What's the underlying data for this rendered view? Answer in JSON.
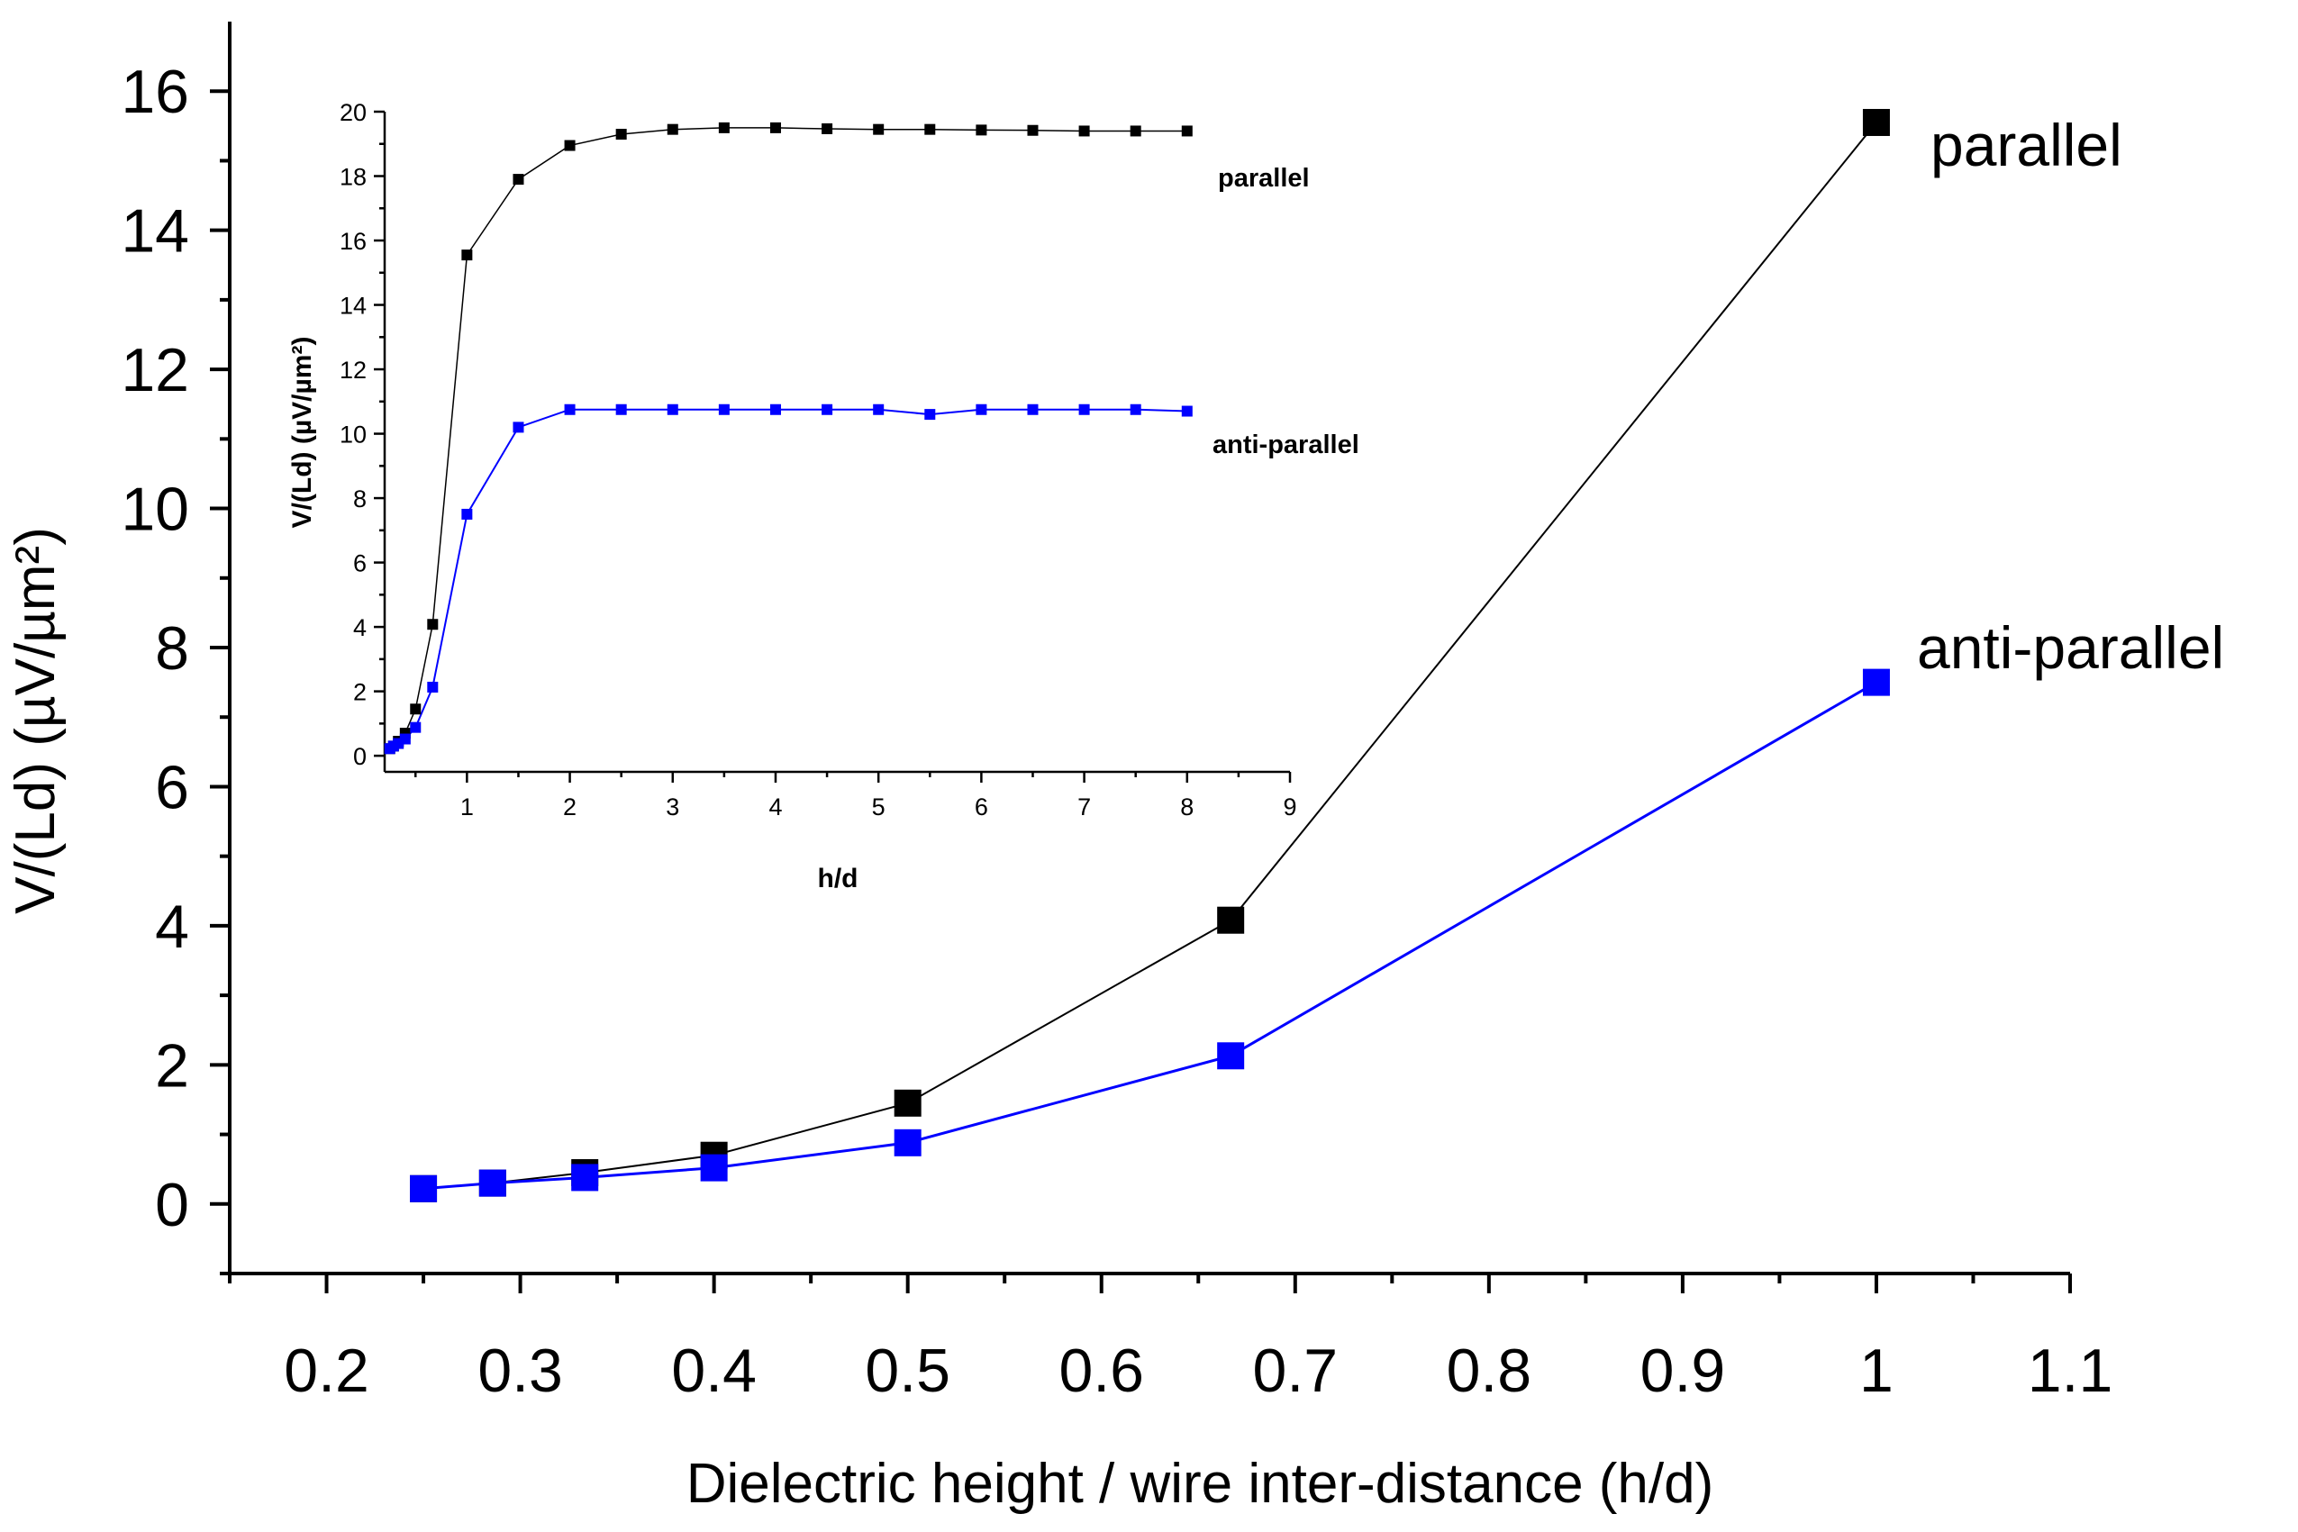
{
  "chart_data": [
    {
      "type": "line",
      "title": "",
      "xlabel": "Dielectric height / wire inter-distance (h/d)",
      "ylabel": "V/(Ld) (µV/µm²)",
      "xlim": [
        0.15,
        1.1
      ],
      "ylim": [
        -1,
        17
      ],
      "xticks": [
        "0.2",
        "0.3",
        "0.4",
        "0.5",
        "0.6",
        "0.7",
        "0.8",
        "0.9",
        "1",
        "1.1"
      ],
      "yticks": [
        "0",
        "2",
        "4",
        "6",
        "8",
        "10",
        "12",
        "14",
        "16"
      ],
      "series": [
        {
          "name": "parallel",
          "color": "#000000",
          "x": [
            0.25,
            0.2857,
            0.3333,
            0.4,
            0.5,
            0.6667,
            1.0
          ],
          "y": [
            0.22,
            0.3,
            0.45,
            0.7,
            1.45,
            4.08,
            15.55
          ]
        },
        {
          "name": "anti-parallel",
          "color": "#0000ff",
          "x": [
            0.25,
            0.2857,
            0.3333,
            0.4,
            0.5,
            0.6667,
            1.0
          ],
          "y": [
            0.22,
            0.3,
            0.38,
            0.52,
            0.88,
            2.13,
            7.5
          ]
        }
      ]
    },
    {
      "type": "line",
      "title": "",
      "xlabel": "h/d",
      "ylabel": "V/(Ld) (µV/µm²)",
      "xlim": [
        0.2,
        9
      ],
      "ylim": [
        -0.5,
        20
      ],
      "xticks": [
        "1",
        "2",
        "3",
        "4",
        "5",
        "6",
        "7",
        "8",
        "9"
      ],
      "yticks": [
        "0",
        "2",
        "4",
        "6",
        "8",
        "10",
        "12",
        "14",
        "16",
        "18",
        "20"
      ],
      "series": [
        {
          "name": "parallel",
          "color": "#000000",
          "x": [
            0.25,
            0.2857,
            0.3333,
            0.4,
            0.5,
            0.6667,
            1.0,
            1.5,
            2.0,
            2.5,
            3.0,
            3.5,
            4.0,
            4.5,
            5.0,
            5.5,
            6.0,
            6.5,
            7.0,
            7.5,
            8.0
          ],
          "y": [
            0.22,
            0.3,
            0.45,
            0.7,
            1.45,
            4.08,
            15.55,
            17.9,
            18.95,
            19.3,
            19.45,
            19.5,
            19.5,
            19.47,
            19.45,
            19.45,
            19.43,
            19.42,
            19.4,
            19.4,
            19.4
          ]
        },
        {
          "name": "anti-parallel",
          "color": "#0000ff",
          "x": [
            0.25,
            0.2857,
            0.3333,
            0.4,
            0.5,
            0.6667,
            1.0,
            1.5,
            2.0,
            2.5,
            3.0,
            3.5,
            4.0,
            4.5,
            5.0,
            5.5,
            6.0,
            6.5,
            7.0,
            7.5,
            8.0
          ],
          "y": [
            0.22,
            0.3,
            0.38,
            0.52,
            0.88,
            2.13,
            7.5,
            10.2,
            10.75,
            10.75,
            10.75,
            10.75,
            10.75,
            10.75,
            10.75,
            10.6,
            10.75,
            10.75,
            10.75,
            10.75,
            10.7
          ]
        }
      ]
    }
  ]
}
